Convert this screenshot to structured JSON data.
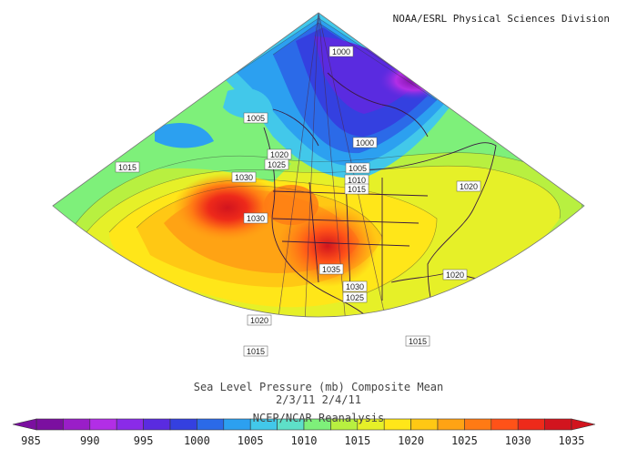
{
  "credit": "NOAA/ESRL Physical Sciences Division",
  "title": "Sea Level Pressure (mb) Composite Mean",
  "dates": "2/3/11 2/4/11",
  "source": "NCEP/NCAR Reanalysis",
  "colorbar": {
    "labels": [
      "985",
      "990",
      "995",
      "1000",
      "1005",
      "1010",
      "1015",
      "1020",
      "1025",
      "1030",
      "1035"
    ],
    "colors": [
      "#7b0fa0",
      "#9a1ec8",
      "#b22ee6",
      "#8a2be8",
      "#5a2be0",
      "#3440e0",
      "#2b6ae8",
      "#2ca0f0",
      "#42c8ea",
      "#5ee0c8",
      "#7ef07a",
      "#b8f040",
      "#e6f028",
      "#ffe619",
      "#ffc814",
      "#ffa314",
      "#ff7a14",
      "#ff5218",
      "#ee2a1a",
      "#d2141e"
    ]
  },
  "contour_labels": [
    {
      "text": "1000"
    },
    {
      "text": "1005"
    },
    {
      "text": "1000"
    },
    {
      "text": "1015"
    },
    {
      "text": "1020"
    },
    {
      "text": "1025"
    },
    {
      "text": "1030"
    },
    {
      "text": "1005"
    },
    {
      "text": "1010"
    },
    {
      "text": "1015"
    },
    {
      "text": "1020"
    },
    {
      "text": "1030"
    },
    {
      "text": "1035"
    },
    {
      "text": "1030"
    },
    {
      "text": "1025"
    },
    {
      "text": "1020"
    },
    {
      "text": "1020"
    },
    {
      "text": "1015"
    },
    {
      "text": "1015"
    }
  ]
}
